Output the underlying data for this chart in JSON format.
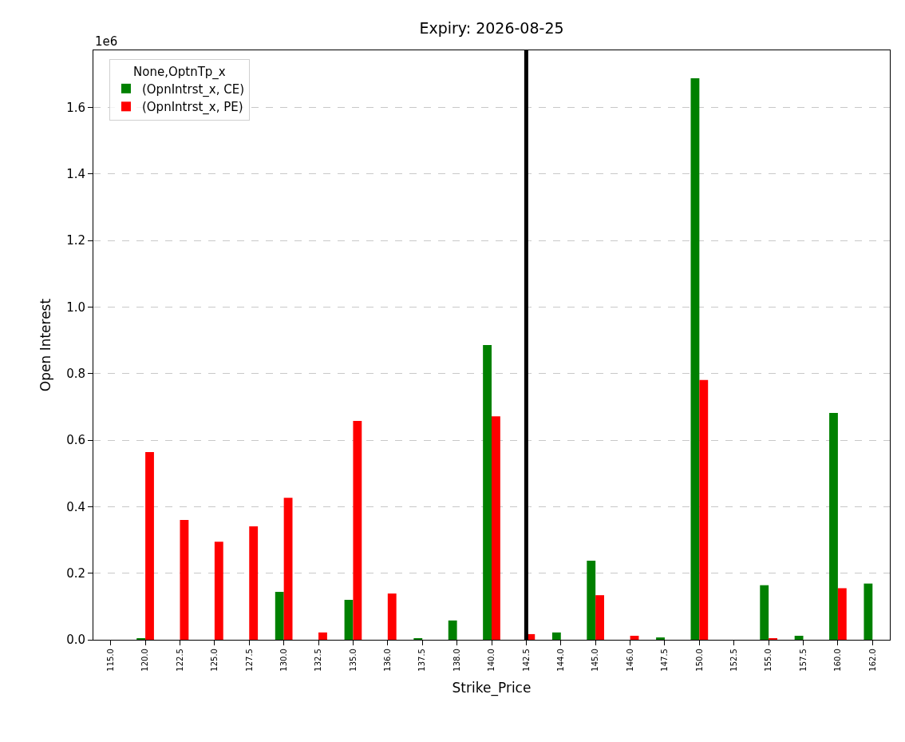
{
  "chart_data": {
    "type": "bar",
    "title": "Expiry: 2026-08-25",
    "xlabel": "Strike_Price",
    "ylabel": "Open Interest",
    "legend_title": "None,OptnTp_x",
    "categories": [
      "115.0",
      "120.0",
      "122.5",
      "125.0",
      "127.5",
      "130.0",
      "132.5",
      "135.0",
      "136.0",
      "137.5",
      "138.0",
      "140.0",
      "142.5",
      "144.0",
      "145.0",
      "146.0",
      "147.5",
      "150.0",
      "152.5",
      "155.0",
      "157.5",
      "160.0",
      "162.0"
    ],
    "series": [
      {
        "name": "(OpnIntrst_x, CE)",
        "color": "#008000",
        "values": [
          null,
          0.003,
          null,
          null,
          null,
          0.144,
          null,
          0.12,
          null,
          0.003,
          0.058,
          0.886,
          null,
          0.022,
          0.238,
          null,
          0.007,
          1.688,
          null,
          0.164,
          0.012,
          0.682,
          0.169
        ]
      },
      {
        "name": "(OpnIntrst_x, PE)",
        "color": "#ff0000",
        "values": [
          null,
          0.564,
          0.36,
          0.295,
          0.341,
          0.427,
          0.022,
          0.658,
          0.139,
          null,
          null,
          0.672,
          0.017,
          null,
          0.134,
          0.012,
          null,
          0.781,
          null,
          0.004,
          null,
          0.155,
          null
        ]
      }
    ],
    "ylim": [
      0,
      1.772
    ],
    "yticks": [
      {
        "value": 0,
        "label": "0.0"
      },
      {
        "value": 0.2,
        "label": "0.2"
      },
      {
        "value": 0.4,
        "label": "0.4"
      },
      {
        "value": 0.6,
        "label": "0.6"
      },
      {
        "value": 0.8,
        "label": "0.8"
      },
      {
        "value": 1.0,
        "label": "1.0"
      },
      {
        "value": 1.2,
        "label": "1.2"
      },
      {
        "value": 1.4,
        "label": "1.4"
      },
      {
        "value": 1.6,
        "label": "1.6"
      }
    ],
    "annotations": [
      "1e6"
    ],
    "ref_lines": [
      {
        "axis": "x",
        "value": "142.5",
        "color": "#000000"
      }
    ],
    "grid": "y",
    "legend": "top left"
  }
}
